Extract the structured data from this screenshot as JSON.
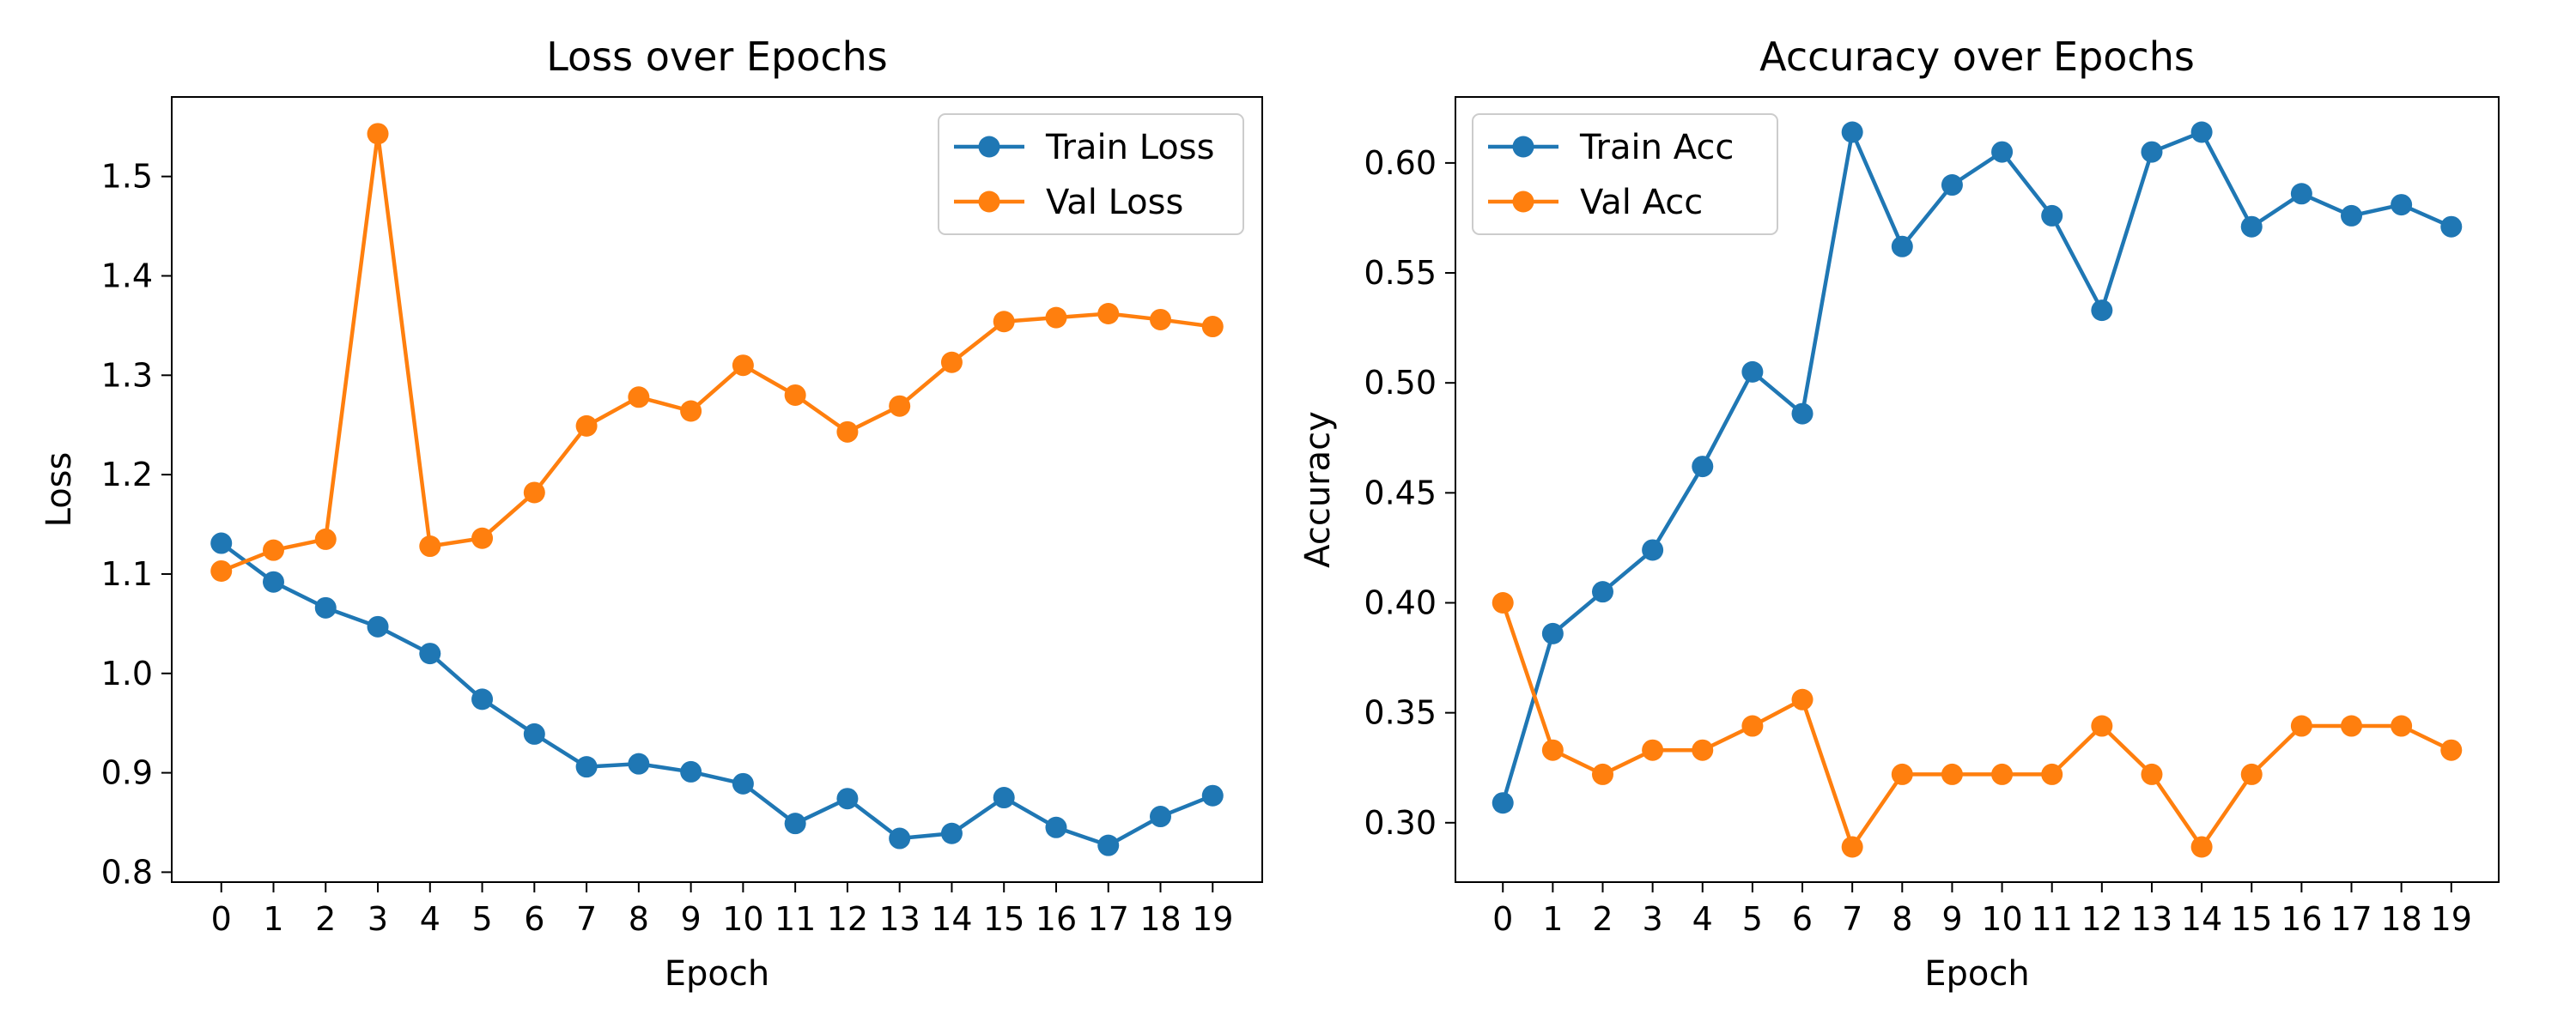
{
  "chart_data": [
    {
      "type": "line",
      "title": "Loss over Epochs",
      "xlabel": "Epoch",
      "ylabel": "Loss",
      "x": [
        0,
        1,
        2,
        3,
        4,
        5,
        6,
        7,
        8,
        9,
        10,
        11,
        12,
        13,
        14,
        15,
        16,
        17,
        18,
        19
      ],
      "xticks": [
        "0",
        "1",
        "2",
        "3",
        "4",
        "5",
        "6",
        "7",
        "8",
        "9",
        "10",
        "11",
        "12",
        "13",
        "14",
        "15",
        "16",
        "17",
        "18",
        "19"
      ],
      "yticks": [
        "0.8",
        "0.9",
        "1.0",
        "1.1",
        "1.2",
        "1.3",
        "1.4",
        "1.5"
      ],
      "ylim": [
        0.79,
        1.58
      ],
      "xlim": [
        -0.95,
        19.95
      ],
      "grid": false,
      "legend_position": "upper right",
      "series": [
        {
          "name": "Train Loss",
          "color": "#1f77b4",
          "values": [
            1.131,
            1.092,
            1.066,
            1.047,
            1.02,
            0.974,
            0.939,
            0.906,
            0.909,
            0.901,
            0.889,
            0.849,
            0.874,
            0.834,
            0.839,
            0.875,
            0.845,
            0.827,
            0.856,
            0.877
          ]
        },
        {
          "name": "Val Loss",
          "color": "#ff7f0e",
          "values": [
            1.103,
            1.124,
            1.135,
            1.543,
            1.128,
            1.136,
            1.182,
            1.249,
            1.278,
            1.264,
            1.31,
            1.28,
            1.243,
            1.269,
            1.313,
            1.354,
            1.358,
            1.362,
            1.356,
            1.349
          ]
        }
      ]
    },
    {
      "type": "line",
      "title": "Accuracy over Epochs",
      "xlabel": "Epoch",
      "ylabel": "Accuracy",
      "x": [
        0,
        1,
        2,
        3,
        4,
        5,
        6,
        7,
        8,
        9,
        10,
        11,
        12,
        13,
        14,
        15,
        16,
        17,
        18,
        19
      ],
      "xticks": [
        "0",
        "1",
        "2",
        "3",
        "4",
        "5",
        "6",
        "7",
        "8",
        "9",
        "10",
        "11",
        "12",
        "13",
        "14",
        "15",
        "16",
        "17",
        "18",
        "19"
      ],
      "yticks": [
        "0.30",
        "0.35",
        "0.40",
        "0.45",
        "0.50",
        "0.55",
        "0.60"
      ],
      "ylim": [
        0.273,
        0.63
      ],
      "xlim": [
        -0.95,
        19.95
      ],
      "grid": false,
      "legend_position": "upper left",
      "series": [
        {
          "name": "Train Acc",
          "color": "#1f77b4",
          "values": [
            0.309,
            0.386,
            0.405,
            0.424,
            0.462,
            0.505,
            0.486,
            0.614,
            0.562,
            0.59,
            0.605,
            0.576,
            0.533,
            0.605,
            0.614,
            0.571,
            0.586,
            0.576,
            0.581,
            0.571
          ]
        },
        {
          "name": "Val Acc",
          "color": "#ff7f0e",
          "values": [
            0.4,
            0.333,
            0.322,
            0.333,
            0.333,
            0.344,
            0.356,
            0.289,
            0.322,
            0.322,
            0.322,
            0.322,
            0.344,
            0.322,
            0.289,
            0.322,
            0.344,
            0.344,
            0.344,
            0.333
          ]
        }
      ]
    }
  ]
}
